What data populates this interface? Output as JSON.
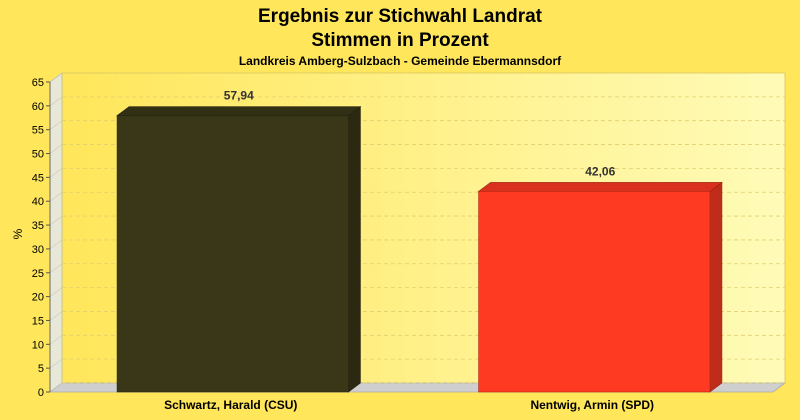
{
  "chart_data": {
    "type": "bar",
    "title": "Ergebnis zur Stichwahl Landrat",
    "title2": "Stimmen in Prozent",
    "subtitle": "Landkreis Amberg-Sulzbach - Gemeinde Ebermannsdorf",
    "ylabel": "%",
    "ylim": [
      0,
      65
    ],
    "yticks": [
      0,
      5,
      10,
      15,
      20,
      25,
      30,
      35,
      40,
      45,
      50,
      55,
      60,
      65
    ],
    "categories": [
      "Schwartz, Harald (CSU)",
      "Nentwig, Armin (SPD)"
    ],
    "values": [
      57.94,
      42.06
    ],
    "value_labels": [
      "57,94",
      "42,06"
    ],
    "colors": [
      "#3a3718",
      "#ff3a22"
    ],
    "grid": true,
    "legend": "none"
  }
}
